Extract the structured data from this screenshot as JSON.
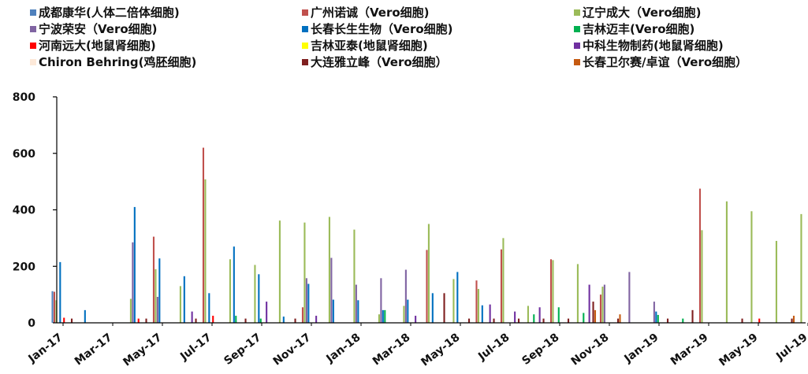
{
  "chart_data": {
    "type": "bar",
    "title": "",
    "xlabel": "",
    "ylabel": "",
    "ylim": [
      0,
      800
    ],
    "yticks": [
      0,
      200,
      400,
      600,
      800
    ],
    "legend_position": "top",
    "grid": false,
    "x_tick_labels": [
      "Jan-17",
      "Mar-17",
      "May-17",
      "Jul-17",
      "Sep-17",
      "Nov-17",
      "Jan-18",
      "Mar-18",
      "May-18",
      "Jul-18",
      "Sep-18",
      "Nov-18",
      "Jan-19",
      "Mar-19",
      "May-19",
      "Jul-19"
    ],
    "x_tick_every": 2,
    "categories": [
      "2017-01",
      "2017-02",
      "2017-03",
      "2017-04",
      "2017-05",
      "2017-06",
      "2017-07",
      "2017-08",
      "2017-09",
      "2017-10",
      "2017-11",
      "2017-12",
      "2018-01",
      "2018-02",
      "2018-03",
      "2018-04",
      "2018-05",
      "2018-06",
      "2018-07",
      "2018-08",
      "2018-09",
      "2018-10",
      "2018-11",
      "2018-12",
      "2019-01",
      "2019-02",
      "2019-03",
      "2019-04",
      "2019-05",
      "2019-06",
      "2019-07"
    ],
    "series": [
      {
        "name": "成都康华(人体二倍体细胞)",
        "color": "#4f81bd",
        "values": [
          112,
          0,
          0,
          0,
          0,
          0,
          0,
          0,
          0,
          0,
          0,
          0,
          0,
          0,
          0,
          0,
          0,
          0,
          0,
          0,
          0,
          0,
          0,
          0,
          0,
          0,
          0,
          0,
          0,
          0,
          0
        ]
      },
      {
        "name": "广州诺诚（Vero细胞)",
        "color": "#c0504d",
        "values": [
          110,
          0,
          0,
          0,
          305,
          0,
          620,
          0,
          0,
          0,
          55,
          0,
          0,
          0,
          0,
          258,
          0,
          150,
          260,
          0,
          225,
          0,
          100,
          0,
          0,
          0,
          475,
          0,
          0,
          0,
          0
        ]
      },
      {
        "name": "辽宁成大（Vero细胞)",
        "color": "#9bbb59",
        "values": [
          80,
          0,
          0,
          85,
          190,
          130,
          508,
          225,
          205,
          362,
          355,
          375,
          330,
          30,
          60,
          350,
          155,
          120,
          300,
          60,
          222,
          208,
          128,
          0,
          0,
          0,
          328,
          430,
          395,
          290,
          385
        ]
      },
      {
        "name": "宁波荣安（Vero细胞)",
        "color": "#8064a2",
        "values": [
          0,
          0,
          0,
          285,
          92,
          0,
          0,
          0,
          0,
          0,
          158,
          230,
          135,
          158,
          188,
          0,
          0,
          0,
          0,
          0,
          0,
          0,
          135,
          180,
          75,
          0,
          0,
          0,
          0,
          0,
          0
        ]
      },
      {
        "name": "长春长生生物（Vero细胞)",
        "color": "#0070c0",
        "values": [
          215,
          45,
          0,
          410,
          228,
          165,
          105,
          270,
          172,
          22,
          138,
          82,
          80,
          45,
          82,
          105,
          180,
          62,
          0,
          0,
          0,
          0,
          0,
          0,
          40,
          0,
          0,
          0,
          0,
          0,
          0
        ]
      },
      {
        "name": "吉林迈丰(Vero细胞)",
        "color": "#00b050",
        "values": [
          0,
          0,
          0,
          0,
          0,
          0,
          0,
          25,
          15,
          0,
          0,
          0,
          0,
          45,
          0,
          0,
          0,
          0,
          0,
          30,
          55,
          35,
          0,
          0,
          28,
          15,
          0,
          0,
          0,
          0,
          0
        ]
      },
      {
        "name": "河南远大(地鼠肾细胞)",
        "color": "#ff0000",
        "values": [
          18,
          0,
          0,
          15,
          0,
          0,
          25,
          0,
          0,
          0,
          0,
          0,
          0,
          0,
          0,
          0,
          0,
          0,
          0,
          0,
          0,
          0,
          0,
          0,
          0,
          0,
          0,
          0,
          15,
          0,
          18
        ]
      },
      {
        "name": "吉林亚泰(地鼠肾细胞)",
        "color": "#ffff00",
        "values": [
          0,
          0,
          0,
          0,
          0,
          0,
          0,
          0,
          0,
          0,
          0,
          0,
          0,
          0,
          0,
          0,
          0,
          0,
          0,
          0,
          0,
          0,
          0,
          0,
          0,
          0,
          0,
          0,
          0,
          0,
          0
        ]
      },
      {
        "name": "中科生物制药(地鼠肾细胞)",
        "color": "#7030a0",
        "values": [
          0,
          0,
          0,
          0,
          0,
          40,
          0,
          0,
          75,
          0,
          25,
          0,
          0,
          0,
          25,
          0,
          0,
          65,
          40,
          55,
          0,
          135,
          0,
          0,
          0,
          0,
          0,
          0,
          0,
          0,
          40
        ]
      },
      {
        "name": "Chiron Behring(鸡胚细胞)",
        "color": "#fde9d9",
        "values": [
          0,
          0,
          0,
          0,
          0,
          0,
          0,
          0,
          0,
          0,
          0,
          0,
          0,
          0,
          0,
          0,
          0,
          0,
          0,
          0,
          0,
          0,
          0,
          0,
          0,
          0,
          0,
          0,
          0,
          0,
          0
        ]
      },
      {
        "name": "大连雅立峰（Vero细胞）",
        "color": "#7f1f1f",
        "values": [
          15,
          0,
          0,
          15,
          0,
          15,
          0,
          15,
          0,
          15,
          0,
          0,
          0,
          0,
          0,
          105,
          15,
          15,
          15,
          15,
          15,
          75,
          15,
          0,
          15,
          45,
          0,
          15,
          0,
          15,
          0
        ]
      },
      {
        "name": "长春卫尔赛/卓谊（Vero细胞）",
        "color": "#c55a11",
        "values": [
          0,
          0,
          0,
          0,
          0,
          0,
          0,
          0,
          0,
          0,
          0,
          0,
          0,
          0,
          0,
          0,
          0,
          0,
          0,
          0,
          0,
          45,
          30,
          0,
          0,
          0,
          0,
          0,
          0,
          25,
          0
        ]
      }
    ]
  }
}
